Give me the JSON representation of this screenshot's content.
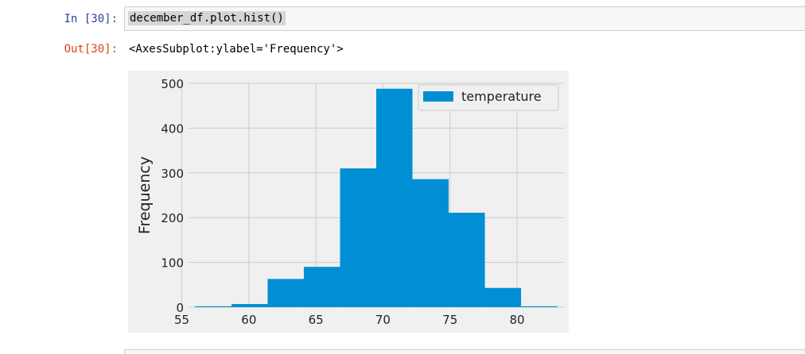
{
  "cell": {
    "in_prompt": "In [30]:",
    "code": "december_df.plot.hist()",
    "out_prompt": "Out[30]:",
    "output_text": "<AxesSubplot:ylabel='Frequency'>"
  },
  "colors": {
    "bar": "#008fd5",
    "plot_background": "#f0f0f0",
    "grid": "#cbcbcb",
    "in_prompt": "#303f9f",
    "out_prompt": "#d84315"
  },
  "chart_data": {
    "type": "bar",
    "histogram": true,
    "ylabel": "Frequency",
    "xlabel": "",
    "title": "",
    "xlim": [
      55.5,
      83.5
    ],
    "ylim": [
      0,
      500
    ],
    "xticks": [
      55,
      60,
      65,
      70,
      75,
      80
    ],
    "yticks": [
      0,
      100,
      200,
      300,
      400,
      500
    ],
    "bin_edges": [
      56.0,
      58.7,
      61.4,
      64.1,
      66.8,
      69.5,
      72.2,
      74.9,
      77.6,
      80.3,
      83.0
    ],
    "series": [
      {
        "name": "temperature",
        "values": [
          2,
          7,
          63,
          90,
          310,
          488,
          286,
          211,
          43,
          2
        ]
      }
    ],
    "legend": "top-right",
    "grid": true
  }
}
